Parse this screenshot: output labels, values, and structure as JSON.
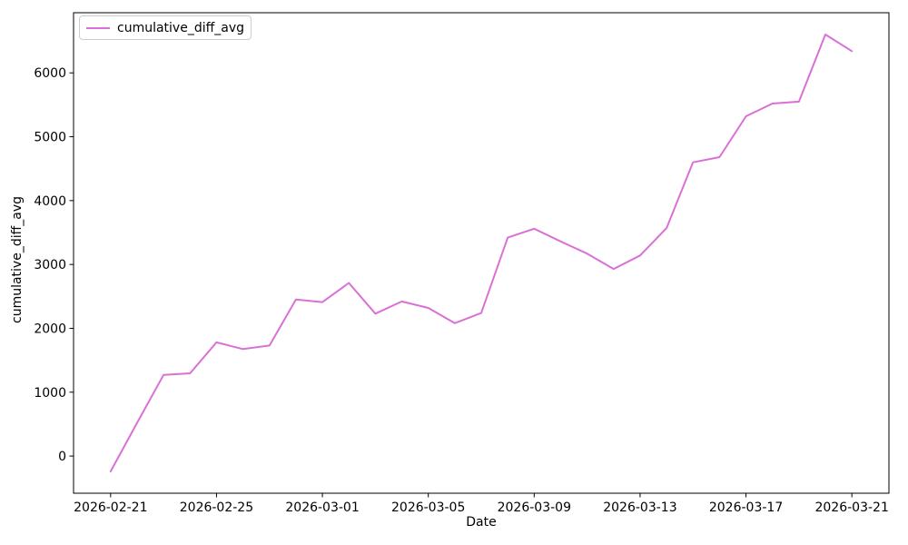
{
  "chart_data": {
    "type": "line",
    "title": "",
    "xlabel": "Date",
    "ylabel": "cumulative_diff_avg",
    "legend": [
      "cumulative_diff_avg"
    ],
    "legend_position": "upper left",
    "grid": false,
    "line_color": "#DA70D6",
    "background_color": "#ffffff",
    "x": [
      "2026-02-21",
      "2026-02-22",
      "2026-02-23",
      "2026-02-24",
      "2026-02-25",
      "2026-02-26",
      "2026-02-27",
      "2026-02-28",
      "2026-03-01",
      "2026-03-02",
      "2026-03-03",
      "2026-03-04",
      "2026-03-05",
      "2026-03-06",
      "2026-03-07",
      "2026-03-08",
      "2026-03-09",
      "2026-03-10",
      "2026-03-11",
      "2026-03-12",
      "2026-03-13",
      "2026-03-14",
      "2026-03-15",
      "2026-03-16",
      "2026-03-17",
      "2026-03-18",
      "2026-03-19",
      "2026-03-20",
      "2026-03-21"
    ],
    "series": [
      {
        "name": "cumulative_diff_avg",
        "values": [
          -240,
          520,
          1270,
          1295,
          1780,
          1675,
          1730,
          2450,
          2410,
          2710,
          2230,
          2420,
          2320,
          2080,
          2240,
          3420,
          3560,
          3360,
          3170,
          2930,
          3140,
          3570,
          4600,
          4680,
          5320,
          5520,
          5550,
          6600,
          6340
        ]
      }
    ],
    "xticks": {
      "labels": [
        "2026-02-21",
        "2026-02-25",
        "2026-03-01",
        "2026-03-05",
        "2026-03-09",
        "2026-03-13",
        "2026-03-17",
        "2026-03-21"
      ],
      "day_indices": [
        0,
        4,
        8,
        12,
        16,
        20,
        24,
        28
      ]
    },
    "yticks": {
      "labels": [
        "0",
        "1000",
        "2000",
        "3000",
        "4000",
        "5000",
        "6000"
      ],
      "values": [
        0,
        1000,
        2000,
        3000,
        4000,
        5000,
        6000
      ]
    },
    "xlim_days": [
      -1.4,
      29.4
    ],
    "ylim": [
      -582,
      6942
    ]
  }
}
